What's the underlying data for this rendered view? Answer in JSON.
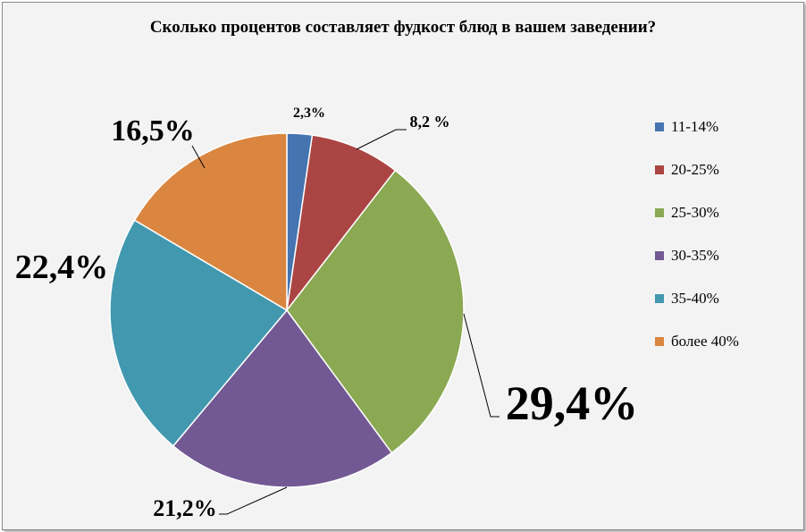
{
  "chart_data": {
    "type": "pie",
    "title": "Сколько процентов составляет фудкост блюд в вашем заведении?",
    "categories": [
      "11-14%",
      "20-25%",
      "25-30%",
      "30-35%",
      "35-40%",
      "более 40%"
    ],
    "values": [
      2.3,
      8.2,
      29.4,
      21.2,
      22.4,
      16.5
    ],
    "data_labels": [
      "2,3%",
      "8,2 %",
      "29,4%",
      "21,2%",
      "22,4%",
      "16,5%"
    ],
    "colors": [
      "#4674b0",
      "#ab4543",
      "#8ba853",
      "#725993",
      "#4298af",
      "#da8640"
    ],
    "legend_position": "right"
  }
}
